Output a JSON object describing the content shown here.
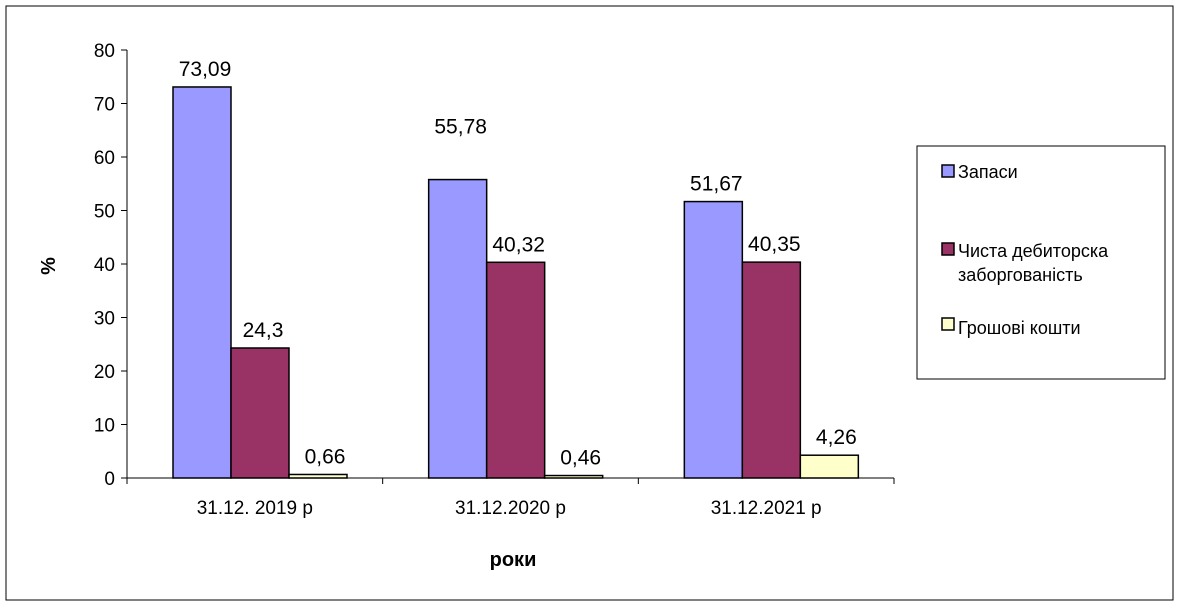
{
  "chart_data": {
    "type": "bar",
    "title": "",
    "xlabel": "роки",
    "ylabel": "%",
    "ylim": [
      0,
      80
    ],
    "yticks": [
      0,
      10,
      20,
      30,
      40,
      50,
      60,
      70,
      80
    ],
    "grid": false,
    "legend_position": "right",
    "categories": [
      "31.12. 2019 р",
      "31.12.2020 р",
      "31.12.2021 р"
    ],
    "series": [
      {
        "name": "Запаси",
        "name_lines": [
          "Запаси"
        ],
        "color": "#9999ff",
        "values": [
          73.09,
          55.78,
          51.67
        ],
        "labels": [
          "73,09",
          "55,78",
          "51,67"
        ]
      },
      {
        "name": "Чиста дебиторска заборгованість",
        "name_lines": [
          "Чиста дебиторска",
          "заборгованість"
        ],
        "color": "#993366",
        "values": [
          24.3,
          40.32,
          40.35
        ],
        "labels": [
          "24,3",
          "40,32",
          "40,35"
        ]
      },
      {
        "name": "Грошові кошти",
        "name_lines": [
          " Грошові кошти"
        ],
        "color": "#ffffcc",
        "values": [
          0.66,
          0.46,
          4.26
        ],
        "labels": [
          "0,66",
          "0,46",
          "4,26"
        ]
      }
    ]
  }
}
